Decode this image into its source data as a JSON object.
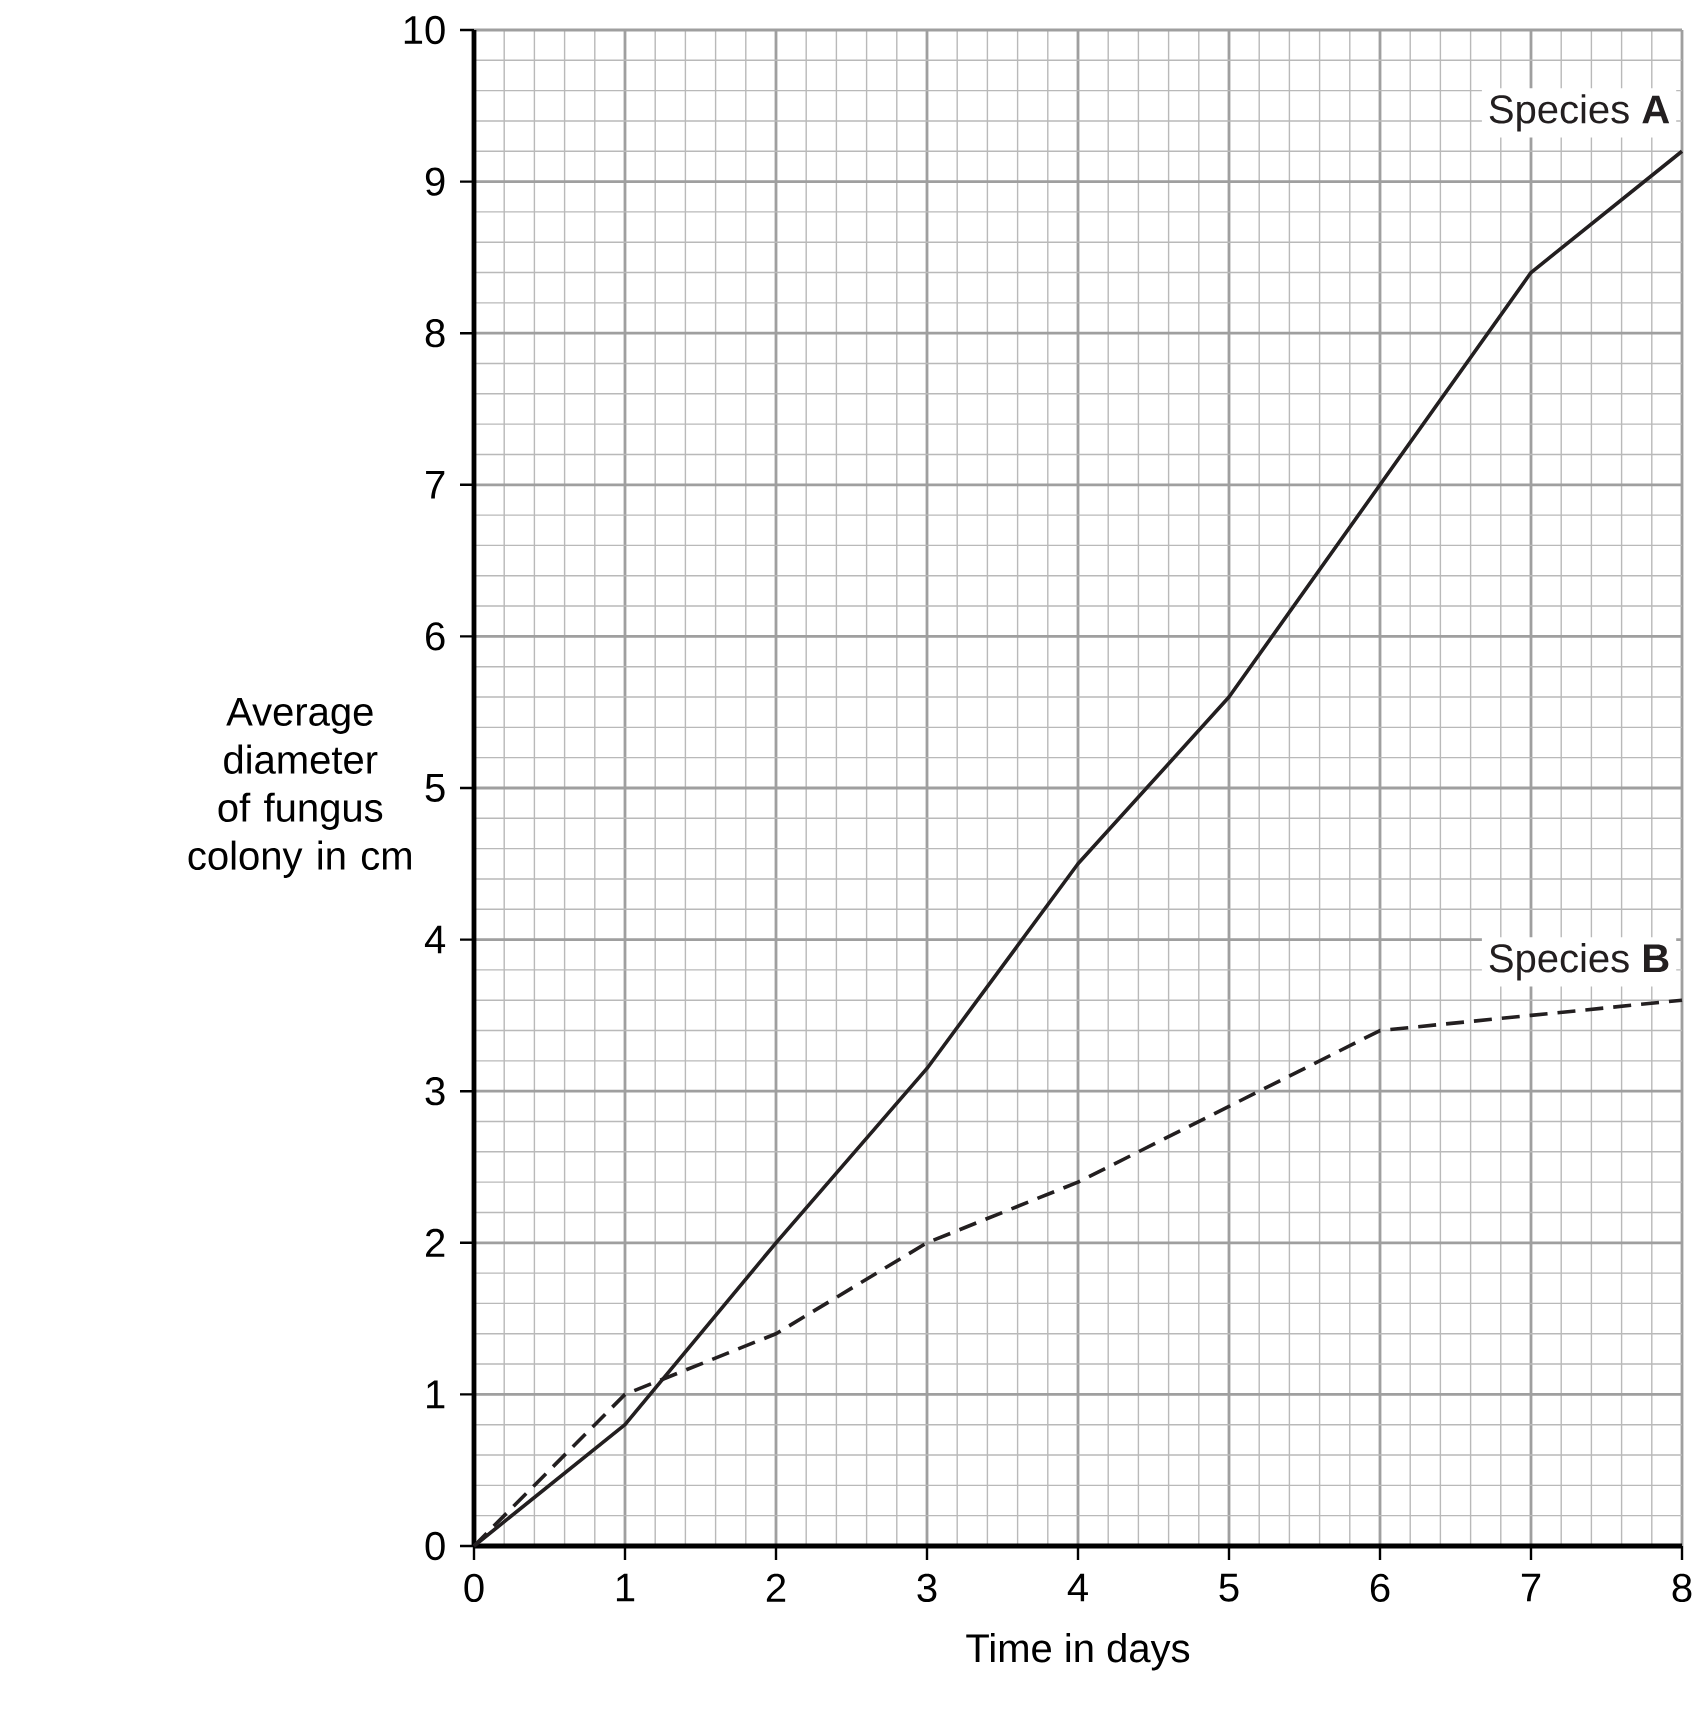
{
  "chart_data": {
    "type": "line",
    "xlabel": "Time in days",
    "ylabel": "Average diameter of fungus colony in cm",
    "x": [
      0,
      1,
      2,
      3,
      4,
      5,
      6,
      7,
      8
    ],
    "series": [
      {
        "name": "Species **A**",
        "color": "#231f20",
        "line_style": "solid",
        "values": [
          0,
          0.8,
          2.0,
          3.15,
          4.5,
          5.6,
          7.0,
          8.4,
          9.2
        ]
      },
      {
        "name": "Species **B**",
        "color": "#231f20",
        "line_style": "dashed",
        "values": [
          0,
          1.0,
          1.4,
          2.0,
          2.4,
          2.9,
          3.4,
          3.5,
          3.6
        ]
      }
    ],
    "xlim": [
      0,
      8
    ],
    "ylim": [
      0,
      10
    ],
    "xticks": [
      0,
      1,
      2,
      3,
      4,
      5,
      6,
      7,
      8
    ],
    "yticks": [
      0,
      1,
      2,
      3,
      4,
      5,
      6,
      7,
      8,
      9,
      10
    ],
    "grid": true,
    "legend": false,
    "marker": "none"
  }
}
